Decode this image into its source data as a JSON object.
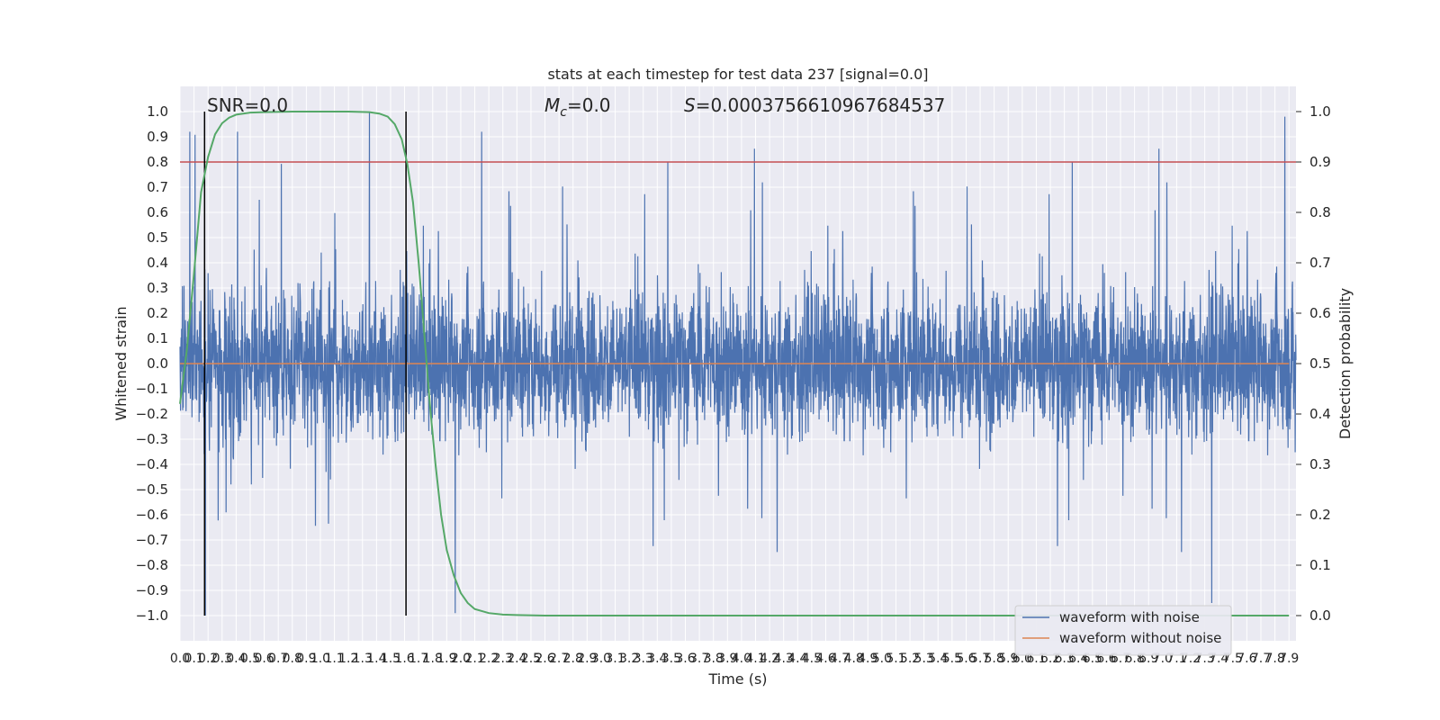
{
  "chart_data": {
    "type": "line",
    "title": "stats at each timestep for test data 237 [signal=0.0]",
    "xlabel": "Time (s)",
    "ylabel": "Whitened strain",
    "ylabel_right": "Detection probability",
    "xlim": [
      0.0,
      7.95
    ],
    "ylim": [
      -1.1,
      1.1
    ],
    "ylim_right": [
      -0.05,
      1.05
    ],
    "x_ticks": [
      "0.0",
      "0.1",
      "0.2",
      "0.3",
      "0.4",
      "0.5",
      "0.6",
      "0.7",
      "0.8",
      "0.9",
      "1.0",
      "1.1",
      "1.2",
      "1.3",
      "1.4",
      "1.5",
      "1.6",
      "1.7",
      "1.8",
      "1.9",
      "2.0",
      "2.1",
      "2.2",
      "2.3",
      "2.4",
      "2.5",
      "2.6",
      "2.7",
      "2.8",
      "2.9",
      "3.0",
      "3.1",
      "3.2",
      "3.3",
      "3.4",
      "3.5",
      "3.6",
      "3.7",
      "3.8",
      "3.9",
      "4.0",
      "4.1",
      "4.2",
      "4.3",
      "4.4",
      "4.5",
      "4.6",
      "4.7",
      "4.8",
      "4.9",
      "5.0",
      "5.1",
      "5.2",
      "5.3",
      "5.4",
      "5.5",
      "5.6",
      "5.7",
      "5.8",
      "5.9",
      "6.0",
      "6.1",
      "6.2",
      "6.3",
      "6.4",
      "6.5",
      "6.6",
      "6.7",
      "6.8",
      "6.9",
      "7.0",
      "7.1",
      "7.2",
      "7.3",
      "7.4",
      "7.5",
      "7.6",
      "7.7",
      "7.8",
      "7.9"
    ],
    "y_ticks": [
      "1.0",
      "0.9",
      "0.8",
      "0.7",
      "0.6",
      "0.5",
      "0.4",
      "0.3",
      "0.2",
      "0.1",
      "0.0",
      "-0.1",
      "-0.2",
      "-0.3",
      "-0.4",
      "-0.5",
      "-0.6",
      "-0.7",
      "-0.8",
      "-0.9",
      "-1.0"
    ],
    "y_ticks_right": [
      "1.0",
      "0.9",
      "0.8",
      "0.7",
      "0.6",
      "0.5",
      "0.4",
      "0.3",
      "0.2",
      "0.1",
      "0.0"
    ],
    "annotations": {
      "snr": "SNR=0.0",
      "mc_symbol": "M",
      "mc_sub": "c",
      "mc_value": "=0.0",
      "s_symbol": "S",
      "s_value": "=0.0003756610967684537"
    },
    "vlines_x": [
      0.175,
      1.61
    ],
    "threshold_right": 0.9,
    "series": [
      {
        "name": "waveform with noise",
        "color": "#4c72b0",
        "kind": "noise",
        "samples": 4096,
        "amplitude_core": 0.45,
        "amplitude_max": 1.0,
        "notable_peaks": [
          [
            0.07,
            0.92
          ],
          [
            0.41,
            0.92
          ],
          [
            0.18,
            -1.0
          ],
          [
            1.35,
            1.0
          ],
          [
            2.15,
            0.92
          ],
          [
            7.87,
            0.98
          ],
          [
            1.96,
            -0.99
          ],
          [
            7.35,
            -0.95
          ]
        ]
      },
      {
        "name": "waveform without noise",
        "color": "#dd8452",
        "value": 0.0
      },
      {
        "name": "detection probability",
        "color": "#55a868",
        "axis": "right",
        "x": [
          0.0,
          0.05,
          0.1,
          0.15,
          0.2,
          0.25,
          0.3,
          0.35,
          0.4,
          0.5,
          0.6,
          0.8,
          1.0,
          1.2,
          1.35,
          1.42,
          1.48,
          1.53,
          1.58,
          1.62,
          1.66,
          1.7,
          1.74,
          1.78,
          1.82,
          1.86,
          1.9,
          1.95,
          2.0,
          2.05,
          2.1,
          2.2,
          2.3,
          2.4,
          2.6,
          3.0,
          4.0,
          5.0,
          6.0,
          7.0,
          7.9
        ],
        "y": [
          0.42,
          0.53,
          0.68,
          0.84,
          0.91,
          0.955,
          0.977,
          0.988,
          0.994,
          0.998,
          0.999,
          1.0,
          1.0,
          1.0,
          0.999,
          0.996,
          0.99,
          0.975,
          0.945,
          0.895,
          0.82,
          0.7,
          0.56,
          0.42,
          0.3,
          0.2,
          0.13,
          0.08,
          0.045,
          0.025,
          0.013,
          0.005,
          0.002,
          0.001,
          0.0,
          0.0,
          0.0,
          0.0,
          0.0,
          0.0,
          0.0
        ]
      }
    ],
    "legend": {
      "position": "lower-right",
      "entries": [
        "waveform with noise",
        "waveform without noise"
      ]
    },
    "grid": true
  },
  "colors": {
    "plot_bg": "#eaeaf2",
    "grid": "#ffffff",
    "noise": "#4c72b0",
    "clean": "#dd8452",
    "prob": "#55a868",
    "threshold": "#c44e52",
    "vline": "#000000"
  }
}
